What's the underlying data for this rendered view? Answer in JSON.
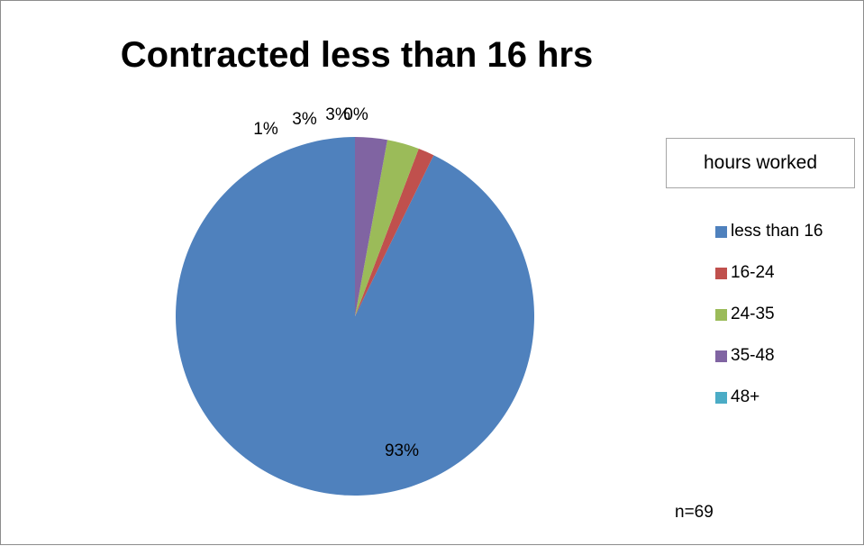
{
  "chart_data": {
    "type": "pie",
    "title": "Contracted less than 16 hrs",
    "legend_title": "hours worked",
    "legend_position": "right",
    "categories": [
      "less than 16",
      "16-24",
      "24-35",
      "35-48",
      "48+"
    ],
    "values": [
      93,
      1.45,
      2.9,
      2.9,
      0
    ],
    "labels": [
      "93%",
      "1%",
      "3%",
      "3%",
      "0%"
    ],
    "colors": [
      "#4f81bd",
      "#c0504d",
      "#9bbb59",
      "#8064a2",
      "#4bacc6"
    ],
    "note": "n=69"
  }
}
